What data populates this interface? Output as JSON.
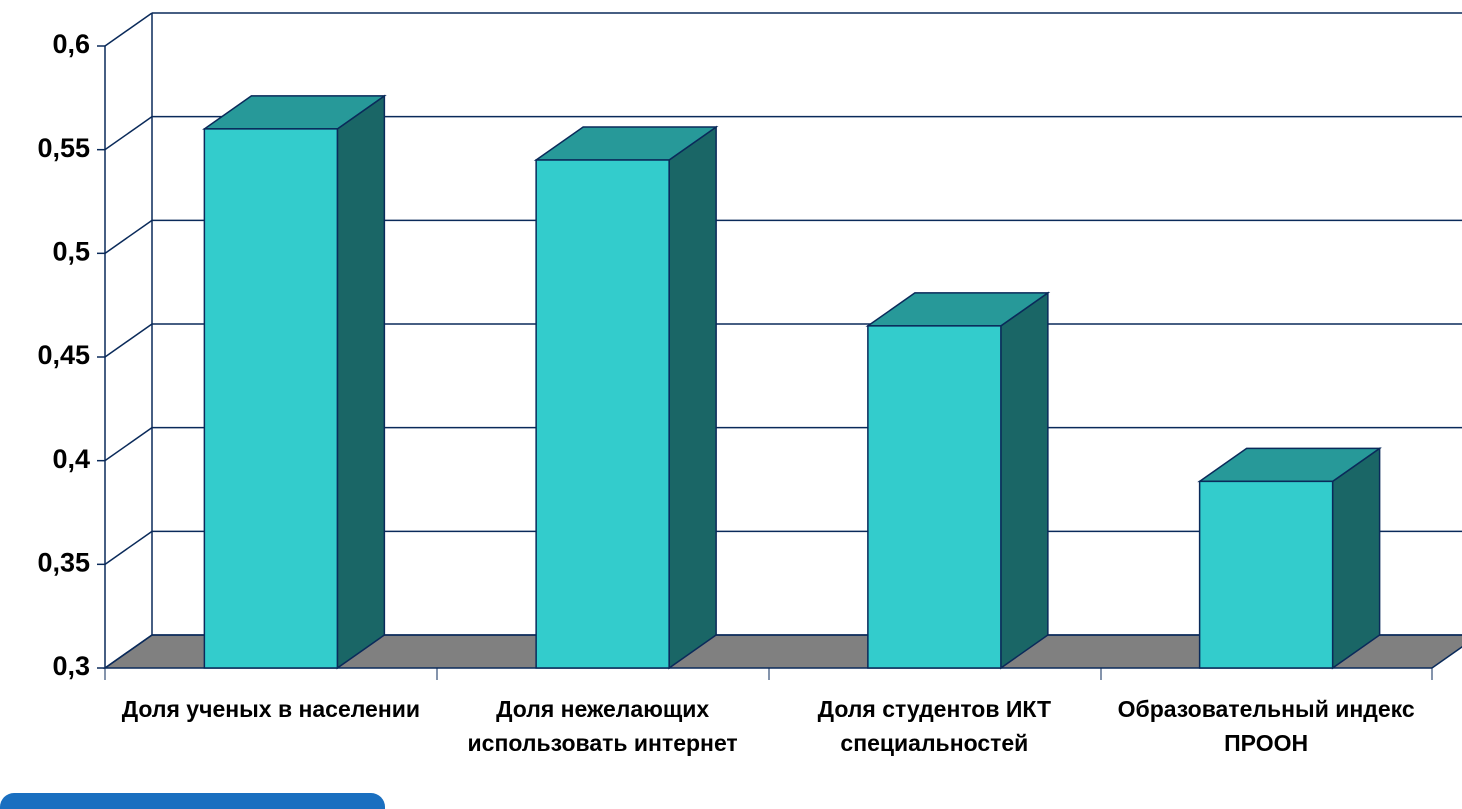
{
  "chart_data": {
    "type": "bar3d",
    "categories": [
      "Доля ученых в населении",
      "Доля нежелающих использовать интернет",
      "Доля студентов ИКТ специальностей",
      "Образовательный индекс ПРООН"
    ],
    "values": [
      0.56,
      0.545,
      0.465,
      0.39
    ],
    "color": "#33cccc",
    "ylim": [
      0.3,
      0.6
    ],
    "yticks": [
      {
        "value": 0.3,
        "label": "0,3"
      },
      {
        "value": 0.35,
        "label": "0,35"
      },
      {
        "value": 0.4,
        "label": "0,4"
      },
      {
        "value": 0.45,
        "label": "0,45"
      },
      {
        "value": 0.5,
        "label": "0,5"
      },
      {
        "value": 0.55,
        "label": "0,55"
      },
      {
        "value": 0.6,
        "label": "0,6"
      }
    ],
    "grid": true
  }
}
